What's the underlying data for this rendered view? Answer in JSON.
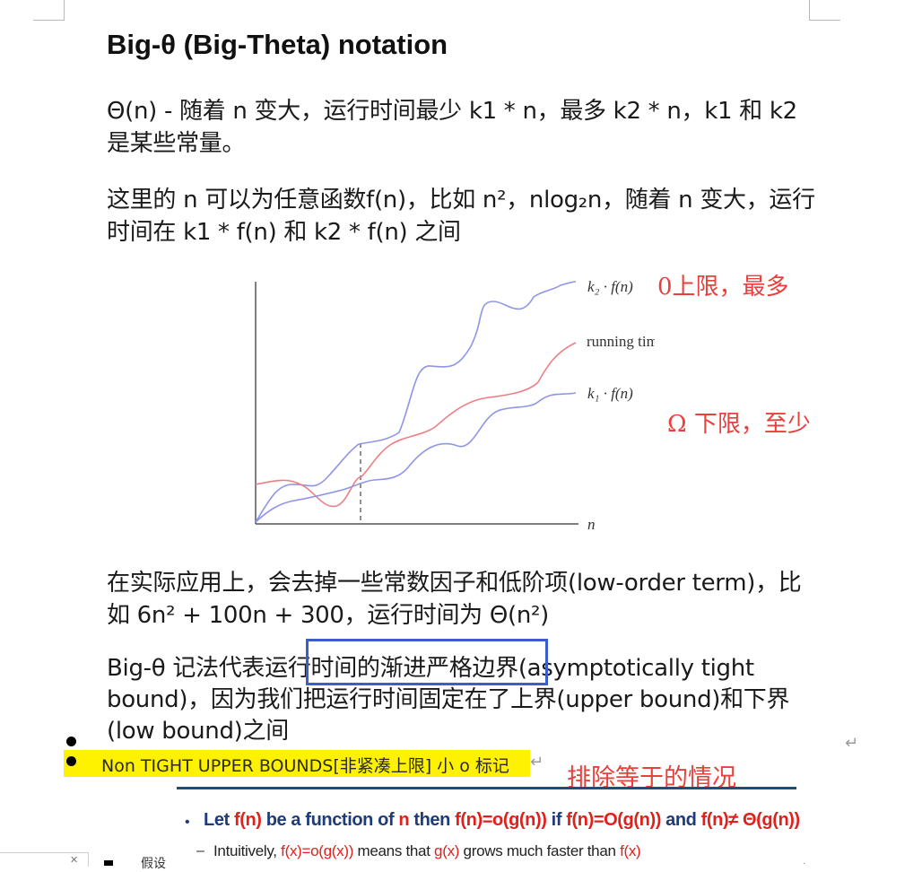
{
  "document": {
    "title": "Big-θ (Big-Theta) notation",
    "para1": "Θ(n) - 随着 n 变大，运行时间最少 k1 * n，最多 k2 * n，k1 和 k2 是某些常量。",
    "para2": "这里的 n 可以为任意函数f(n)，比如 n²，nlog₂n，随着 n 变大，运行时间在 k1 * f(n) 和 k2 * f(n) 之间",
    "para3": "在实际应用上，会去掉一些常数因子和低阶项(low-order term)，比如 6n² + 100n + 300，运行时间为 Θ(n²)",
    "para4": "Big-θ 记法代表运行时间的渐进严格边界(asymptotically tight bound)，因为我们把运行时间固定在了上界(upper bound)和下界(low bound)之间",
    "highlight_text": "Non TIGHT UPPER BOUNDS[非紧凑上限]    小 o 标记",
    "return_mark": "↵"
  },
  "annotations": {
    "upper": "0上限，最多",
    "lower": "Ω 下限，至少",
    "exclude": "排除等于的情况"
  },
  "chart_data": {
    "type": "line",
    "series": [
      {
        "name": "k2 · f(n)",
        "color": "#8f95e6"
      },
      {
        "name": "running time",
        "color": "#ec7f86"
      },
      {
        "name": "k1 · f(n)",
        "color": "#8f95e6"
      }
    ],
    "xlabel": "n",
    "ylabel": "",
    "grid": false
  },
  "chart_labels": {
    "k2": "k₂ · f(n)",
    "running": "running time",
    "k1": "k₁ · f(n)",
    "n": "n"
  },
  "slide": {
    "bullet": "•",
    "line1_a": "Let ",
    "line1_b": "f(n)",
    "line1_c": " be a function of ",
    "line1_d": "n",
    "line1_e": " then ",
    "line1_f": "f(n)=o(g(n))",
    "line1_g": " if ",
    "line1_h": "f(n)=O(g(n))",
    "line1_i": " and ",
    "line1_j": "f(n)≠ Θ(g(n))",
    "dash": "–",
    "line2_a": "Intuitively, ",
    "line2_b": "f(x)=o(g(x))",
    "line2_c": " means that ",
    "line2_d": "g(x)",
    "line2_e": " grows much faster than ",
    "line2_f": "f(x)"
  },
  "footer": {
    "partial_text": "假设"
  }
}
